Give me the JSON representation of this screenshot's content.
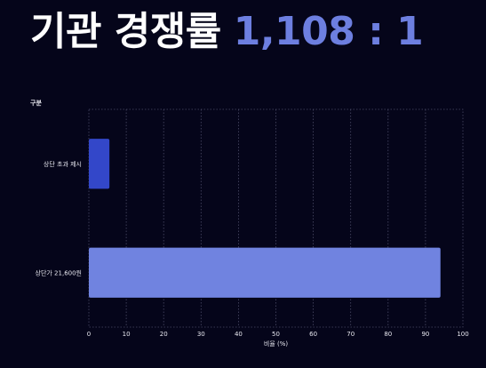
{
  "header": {
    "title": "기관 경쟁률",
    "value": "1,108 : 1",
    "value_color": "#6d7fe0"
  },
  "chart_data": {
    "type": "bar",
    "orientation": "horizontal",
    "title": "기관 경쟁률 1,108 : 1",
    "category_axis_label": "구분",
    "xlabel": "비율 (%)",
    "xlim": [
      0,
      100
    ],
    "xticks": [
      0,
      10,
      20,
      30,
      40,
      50,
      60,
      70,
      80,
      90,
      100
    ],
    "grid": true,
    "categories": [
      "상단 초과 제시",
      "상단가 21,600원"
    ],
    "values": [
      5.5,
      94
    ],
    "colors": [
      "#3347c9",
      "#7083e0"
    ]
  }
}
